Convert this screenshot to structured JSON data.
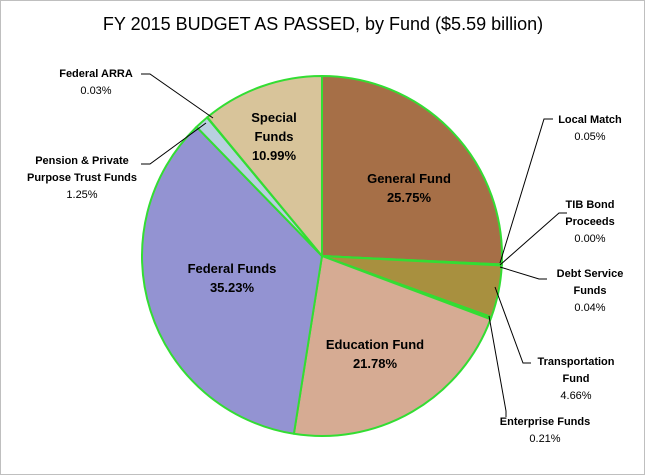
{
  "chart_data": {
    "type": "pie",
    "title": "FY 2015 BUDGET AS PASSED, by Fund ($5.59 billion)",
    "slices": [
      {
        "name": "General Fund",
        "value": 25.75,
        "label": "25.75%",
        "color": "#a66f47"
      },
      {
        "name": "Local Match",
        "value": 0.05,
        "label": "0.05%",
        "color": "#9a8a3c"
      },
      {
        "name": "TIB Bond Proceeds",
        "value": 0.0,
        "label": "0.00%",
        "color": "#9a8a3c"
      },
      {
        "name": "Debt Service Funds",
        "value": 0.04,
        "label": "0.04%",
        "color": "#9a8a3c"
      },
      {
        "name": "Transportation Fund",
        "value": 4.66,
        "label": "4.66%",
        "color": "#a8903f"
      },
      {
        "name": "Enterprise Funds",
        "value": 0.21,
        "label": "0.21%",
        "color": "#a8903f"
      },
      {
        "name": "Education Fund",
        "value": 21.78,
        "label": "21.78%",
        "color": "#d6ab93"
      },
      {
        "name": "Federal Funds",
        "value": 35.23,
        "label": "35.23%",
        "color": "#9393d2"
      },
      {
        "name": "Pension & Private Purpose Trust Funds",
        "value": 1.25,
        "label": "1.25%",
        "color": "#b8cfe0"
      },
      {
        "name": "Federal ARRA",
        "value": 0.03,
        "label": "0.03%",
        "color": "#a6a6a6"
      },
      {
        "name": "Special Funds",
        "value": 10.99,
        "label": "10.99%",
        "color": "#d8c49a"
      }
    ],
    "inside_labels": [
      {
        "slice": "General Fund",
        "lines": [
          "General Fund",
          "25.75%"
        ]
      },
      {
        "slice": "Education Fund",
        "lines": [
          "Education Fund",
          "21.78%"
        ]
      },
      {
        "slice": "Federal Funds",
        "lines": [
          "Federal Funds",
          "35.23%"
        ]
      },
      {
        "slice": "Special Funds",
        "lines": [
          "Special",
          "Funds",
          "10.99%"
        ]
      }
    ],
    "outside_labels": [
      {
        "slice": "Local Match",
        "lines": [
          "Local Match",
          "0.05%"
        ]
      },
      {
        "slice": "TIB Bond Proceeds",
        "lines": [
          "TIB Bond",
          "Proceeds",
          "0.00%"
        ]
      },
      {
        "slice": "Debt Service Funds",
        "lines": [
          "Debt Service",
          "Funds",
          "0.04%"
        ]
      },
      {
        "slice": "Transportation Fund",
        "lines": [
          "Transportation",
          "Fund",
          "4.66%"
        ]
      },
      {
        "slice": "Enterprise Funds",
        "lines": [
          "Enterprise Funds",
          "0.21%"
        ]
      },
      {
        "slice": "Pension & Private Purpose Trust Funds",
        "lines": [
          "Pension  & Private",
          "Purpose Trust Funds",
          "1.25%"
        ]
      },
      {
        "slice": "Federal ARRA",
        "lines": [
          "Federal ARRA",
          "0.03%"
        ]
      }
    ],
    "slice_border_color": "#33dd33",
    "leader_line_color": "#000000"
  }
}
